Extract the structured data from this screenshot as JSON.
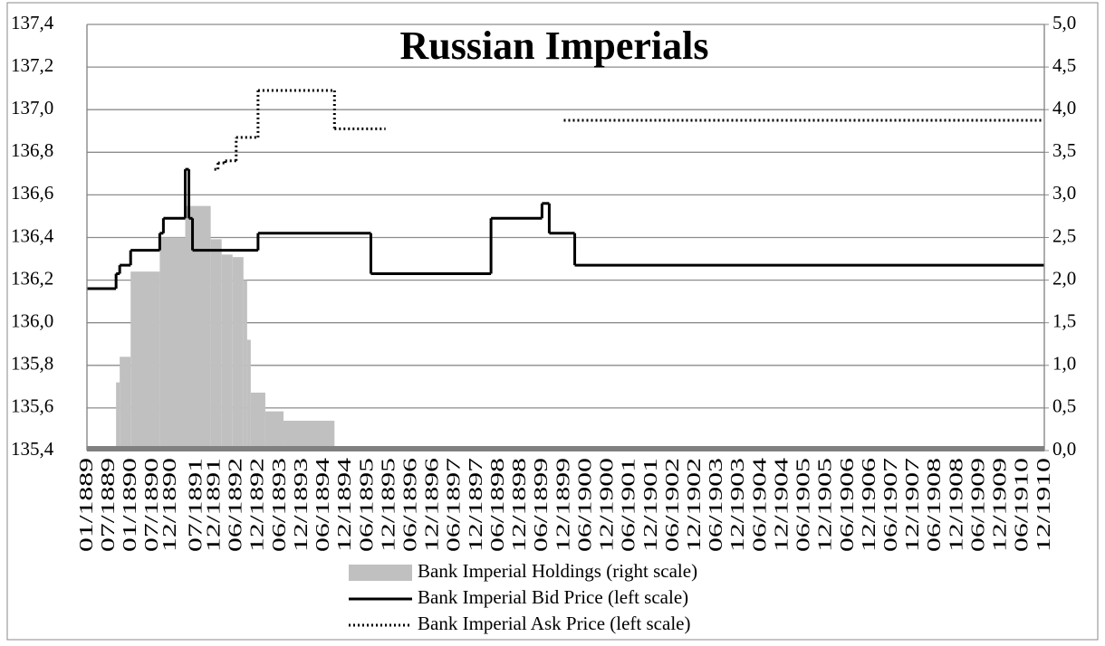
{
  "chart_data": {
    "type": "line",
    "title": "Russian Imperials",
    "xlim": [
      "01/1889",
      "12/1910"
    ],
    "xticks": [
      "01/1889",
      "07/1889",
      "01/1890",
      "07/1890",
      "12/1890",
      "07/1891",
      "12/1891",
      "06/1892",
      "12/1892",
      "06/1893",
      "12/1893",
      "06/1894",
      "12/1894",
      "06/1895",
      "12/1895",
      "06/1896",
      "12/1896",
      "06/1897",
      "12/1897",
      "06/1898",
      "12/1898",
      "06/1899",
      "12/1899",
      "06/1900",
      "12/1900",
      "06/1901",
      "12/1901",
      "06/1902",
      "12/1902",
      "06/1903",
      "12/1903",
      "06/1904",
      "12/1904",
      "06/1905",
      "12/1905",
      "06/1906",
      "12/1906",
      "06/1907",
      "12/1907",
      "06/1908",
      "12/1908",
      "06/1909",
      "12/1909",
      "06/1910",
      "12/1910"
    ],
    "ylim": [
      135.4,
      137.4
    ],
    "yticks": [
      {
        "value": 135.4,
        "label": "135,4"
      },
      {
        "value": 135.6,
        "label": "135,6"
      },
      {
        "value": 135.8,
        "label": "135,8"
      },
      {
        "value": 136.0,
        "label": "136,0"
      },
      {
        "value": 136.2,
        "label": "136,2"
      },
      {
        "value": 136.4,
        "label": "136,4"
      },
      {
        "value": 136.6,
        "label": "136,6"
      },
      {
        "value": 136.8,
        "label": "136,8"
      },
      {
        "value": 137.0,
        "label": "137,0"
      },
      {
        "value": 137.2,
        "label": "137,2"
      },
      {
        "value": 137.4,
        "label": "137,4"
      }
    ],
    "y2lim": [
      0,
      5
    ],
    "y2ticks": [
      {
        "value": 0,
        "label": "0,0"
      },
      {
        "value": 0.5,
        "label": "0,5"
      },
      {
        "value": 1,
        "label": "1,0"
      },
      {
        "value": 1.5,
        "label": "1,5"
      },
      {
        "value": 2,
        "label": "2,0"
      },
      {
        "value": 2.5,
        "label": "2,5"
      },
      {
        "value": 3,
        "label": "3,0"
      },
      {
        "value": 3.5,
        "label": "3,5"
      },
      {
        "value": 4,
        "label": "4,0"
      },
      {
        "value": 4.5,
        "label": "4,5"
      },
      {
        "value": 5,
        "label": "5,0"
      }
    ],
    "grid": true,
    "legend": "bottom",
    "series": [
      {
        "name": "Bank Imperial Holdings (right scale)",
        "color": "#c0c0c0",
        "kind": "area",
        "axis": "y2",
        "x": [
          "01/1889",
          "09/1889",
          "10/1889",
          "01/1890",
          "09/1890",
          "04/1891",
          "11/1891",
          "02/1892",
          "05/1892",
          "08/1892",
          "09/1892",
          "10/1892",
          "02/1893",
          "07/1893",
          "09/1894",
          "03/1899",
          "03/1900",
          "12/1910"
        ],
        "values": [
          0,
          0.8,
          1.1,
          2.1,
          2.5,
          2.87,
          2.48,
          2.3,
          2.27,
          2.0,
          1.3,
          0.68,
          0.46,
          0.35,
          0,
          0.03,
          0,
          0
        ]
      },
      {
        "name": "Bank Imperial Bid Price (left scale)",
        "color": "#000000",
        "kind": "solid",
        "x": [
          "01/1889",
          "09/1889",
          "10/1889",
          "01/1890",
          "09/1890",
          "10/1890",
          "04/1891",
          "05/1891",
          "06/1891",
          "12/1892",
          "07/1895",
          "04/1898",
          "06/1899",
          "08/1899",
          "03/1900",
          "12/1910"
        ],
        "values": [
          136.16,
          136.23,
          136.27,
          136.34,
          136.42,
          136.49,
          136.72,
          136.49,
          136.34,
          136.42,
          136.23,
          136.49,
          136.56,
          136.42,
          136.27,
          136.27
        ]
      },
      {
        "name": "Bank Imperial Ask Price (left scale)",
        "color": "#000000",
        "kind": "dotted",
        "x": [
          "12/1891",
          "01/1892",
          "03/1892",
          "06/1892",
          "12/1892",
          "09/1894",
          "11/1895",
          "06/1899",
          "12/1899",
          "12/1910"
        ],
        "values": [
          136.72,
          136.75,
          136.76,
          136.87,
          137.09,
          136.91,
          136.91,
          null,
          136.95,
          136.95
        ]
      }
    ]
  }
}
